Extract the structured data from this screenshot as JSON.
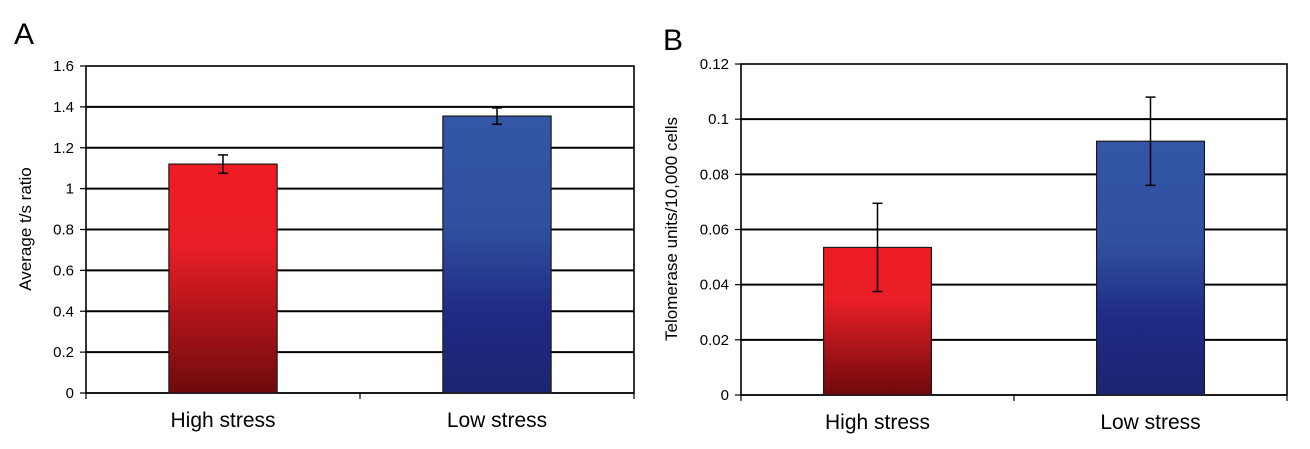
{
  "chart_data": [
    {
      "panel": "A",
      "type": "bar",
      "categories": [
        "High stress",
        "Low stress"
      ],
      "values": [
        1.12,
        1.355
      ],
      "errors": [
        0.045,
        0.04
      ],
      "ylabel": "Average t/s ratio",
      "xlabel": "",
      "ylim": [
        0,
        1.6
      ],
      "yticks": [
        "0",
        "0.2",
        "0.4",
        "0.6",
        "0.8",
        "1",
        "1.2",
        "1.4",
        "1.6"
      ],
      "grid": true,
      "colors": {
        "High stress": [
          "#ee1c24",
          "#6e0a0c"
        ],
        "Low stress": [
          "#3356a6",
          "#1b2570"
        ]
      }
    },
    {
      "panel": "B",
      "type": "bar",
      "categories": [
        "High stress",
        "Low stress"
      ],
      "values": [
        0.0535,
        0.092
      ],
      "errors": [
        0.016,
        0.016
      ],
      "ylabel": "Telomerase units/10,000 cells",
      "xlabel": "",
      "ylim": [
        0,
        0.12
      ],
      "yticks": [
        "0",
        "0.02",
        "0.04",
        "0.06",
        "0.08",
        "0.1",
        "0.12"
      ],
      "grid": true,
      "colors": {
        "High stress": [
          "#ee1c24",
          "#6e0a0c"
        ],
        "Low stress": [
          "#3356a6",
          "#1b2570"
        ]
      }
    }
  ]
}
